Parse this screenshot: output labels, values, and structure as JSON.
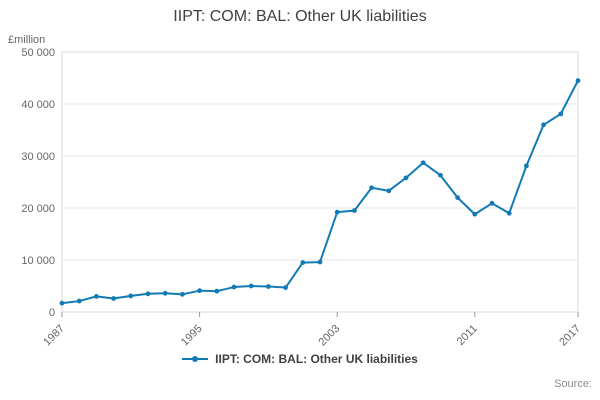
{
  "title": "IIPT: COM: BAL: Other UK liabilities",
  "y_axis_unit": "£million",
  "source_label": "Source:",
  "legend": {
    "label": "IIPT: COM: BAL: Other UK liabilities"
  },
  "colors": {
    "line": "#127bb5",
    "grid": "#e6e6e6",
    "axis_line": "#999999",
    "plot_border": "#d9d9d9",
    "tick_text": "#666666",
    "title_text": "#414042",
    "source_text": "#8c8c8c"
  },
  "chart_data": {
    "type": "line",
    "title": "IIPT: COM: BAL: Other UK liabilities",
    "xlabel": "",
    "ylabel": "£million",
    "x": [
      1987,
      1988,
      1989,
      1990,
      1991,
      1992,
      1993,
      1994,
      1995,
      1996,
      1997,
      1998,
      1999,
      2000,
      2001,
      2002,
      2003,
      2004,
      2005,
      2006,
      2007,
      2008,
      2009,
      2010,
      2011,
      2012,
      2013,
      2014,
      2015,
      2016,
      2017
    ],
    "series": [
      {
        "name": "IIPT: COM: BAL: Other UK liabilities",
        "values": [
          1700,
          2100,
          3000,
          2600,
          3100,
          3500,
          3600,
          3400,
          4100,
          4000,
          4800,
          5000,
          4900,
          4700,
          9500,
          9600,
          19200,
          19500,
          23900,
          23300,
          25800,
          28700,
          26300,
          22000,
          18800,
          20900,
          19000,
          28100,
          36000,
          38100,
          44500
        ]
      }
    ],
    "ylim": [
      0,
      50000
    ],
    "y_ticks": [
      0,
      10000,
      20000,
      30000,
      40000,
      50000
    ],
    "y_tick_labels": [
      "0",
      "10 000",
      "20 000",
      "30 000",
      "40 000",
      "50 000"
    ],
    "x_ticks": [
      1987,
      1995,
      2003,
      2011,
      2017
    ],
    "x_tick_labels": [
      "1987",
      "1995",
      "2003",
      "2011",
      "2017"
    ],
    "grid": true,
    "legend_position": "bottom",
    "markers": true
  }
}
